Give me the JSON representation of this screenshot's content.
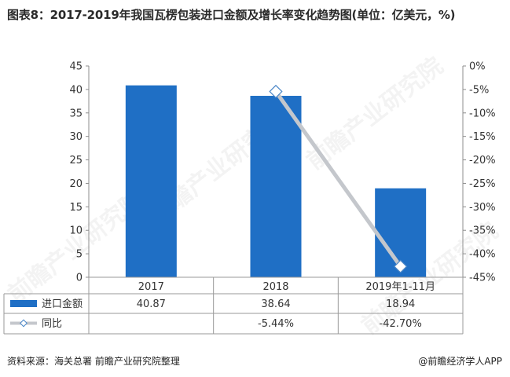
{
  "title": "图表8：2017-2019年我国瓦楞包装进口金额及增长率变化趋势图(单位：亿美元，%)",
  "watermark_text": "前瞻产业研究院",
  "source": "资料来源：海关总署 前瞻产业研究院整理",
  "brand": "@前瞻经济学人APP",
  "chart_data": {
    "type": "bar",
    "categories": [
      "2017",
      "2018",
      "2019年1-11月"
    ],
    "series": [
      {
        "name": "进口金额",
        "type": "bar",
        "axis": "left",
        "color": "#1f6fc5",
        "values": [
          40.87,
          38.64,
          18.94
        ],
        "labels": [
          "40.87",
          "38.64",
          "18.94"
        ]
      },
      {
        "name": "同比",
        "type": "line",
        "axis": "right",
        "color": "#c4c7cc",
        "values": [
          null,
          -5.44,
          -42.7
        ],
        "labels": [
          "",
          "-5.44%",
          "-42.70%"
        ]
      }
    ],
    "y_left": {
      "min": 0,
      "max": 45,
      "step": 5,
      "ticks": [
        "0",
        "5",
        "10",
        "15",
        "20",
        "25",
        "30",
        "35",
        "40",
        "45"
      ]
    },
    "y_right": {
      "min": -45,
      "max": 0,
      "step": 5,
      "ticks": [
        "0%",
        "-5%",
        "-10%",
        "-15%",
        "-20%",
        "-25%",
        "-30%",
        "-35%",
        "-40%",
        "-45%"
      ]
    },
    "grid": false,
    "legend": "data-table"
  }
}
